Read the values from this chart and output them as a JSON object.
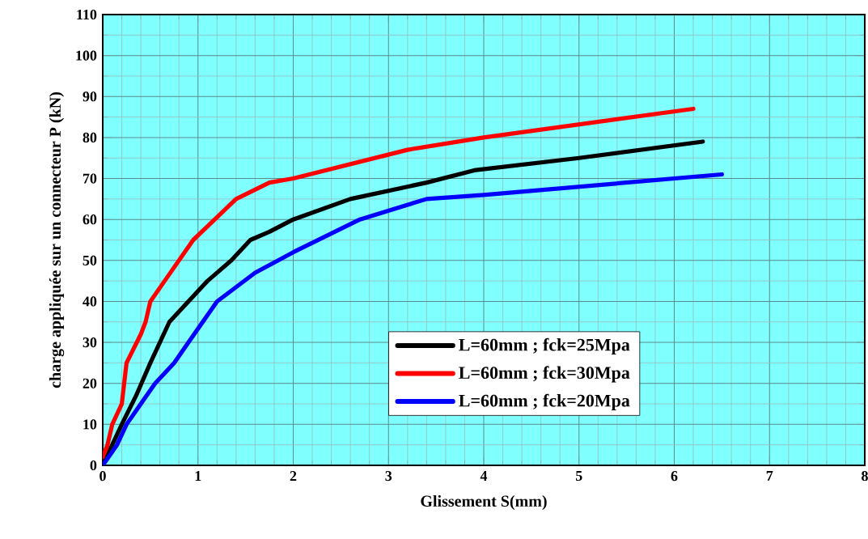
{
  "chart_data": {
    "type": "line",
    "xlabel": "Glissement S(mm)",
    "ylabel": "charge appliquée sur un connecteur P (kN)",
    "xlim": [
      0,
      8
    ],
    "ylim": [
      0,
      110
    ],
    "xticks": [
      0,
      1,
      2,
      3,
      4,
      5,
      6,
      7,
      8
    ],
    "yticks": [
      0,
      10,
      20,
      30,
      40,
      50,
      60,
      70,
      80,
      90,
      100,
      110
    ],
    "grid": true,
    "legend": "bottom",
    "series": [
      {
        "name": "L=60mm ; fck=25Mpa",
        "color": "#000000",
        "x": [
          0,
          0.1,
          0.2,
          0.35,
          0.5,
          0.7,
          0.9,
          1.1,
          1.35,
          1.55,
          1.75,
          2,
          2.6,
          3.4,
          3.9,
          5,
          6.3
        ],
        "values": [
          0,
          5,
          10,
          17,
          25,
          35,
          40,
          45,
          50,
          55,
          57,
          60,
          65,
          69,
          72,
          75,
          79
        ]
      },
      {
        "name": "L=60mm ; fck=30Mpa",
        "color": "#ff0000",
        "x": [
          0,
          0.05,
          0.1,
          0.2,
          0.25,
          0.4,
          0.45,
          0.5,
          0.65,
          0.95,
          1.4,
          1.75,
          2,
          3.2,
          4,
          6.2
        ],
        "values": [
          2,
          5,
          10,
          15,
          25,
          32,
          35,
          40,
          45,
          55,
          65,
          69,
          70,
          77,
          80,
          87
        ]
      },
      {
        "name": "L=60mm ; fck=20Mpa",
        "color": "#0000ff",
        "x": [
          0,
          0.15,
          0.25,
          0.4,
          0.55,
          0.75,
          0.9,
          1.2,
          1.6,
          2,
          2.7,
          3.4,
          4,
          6.5
        ],
        "values": [
          0,
          5,
          10,
          15,
          20,
          25,
          30,
          40,
          47,
          52,
          60,
          65,
          66,
          71
        ]
      }
    ]
  }
}
